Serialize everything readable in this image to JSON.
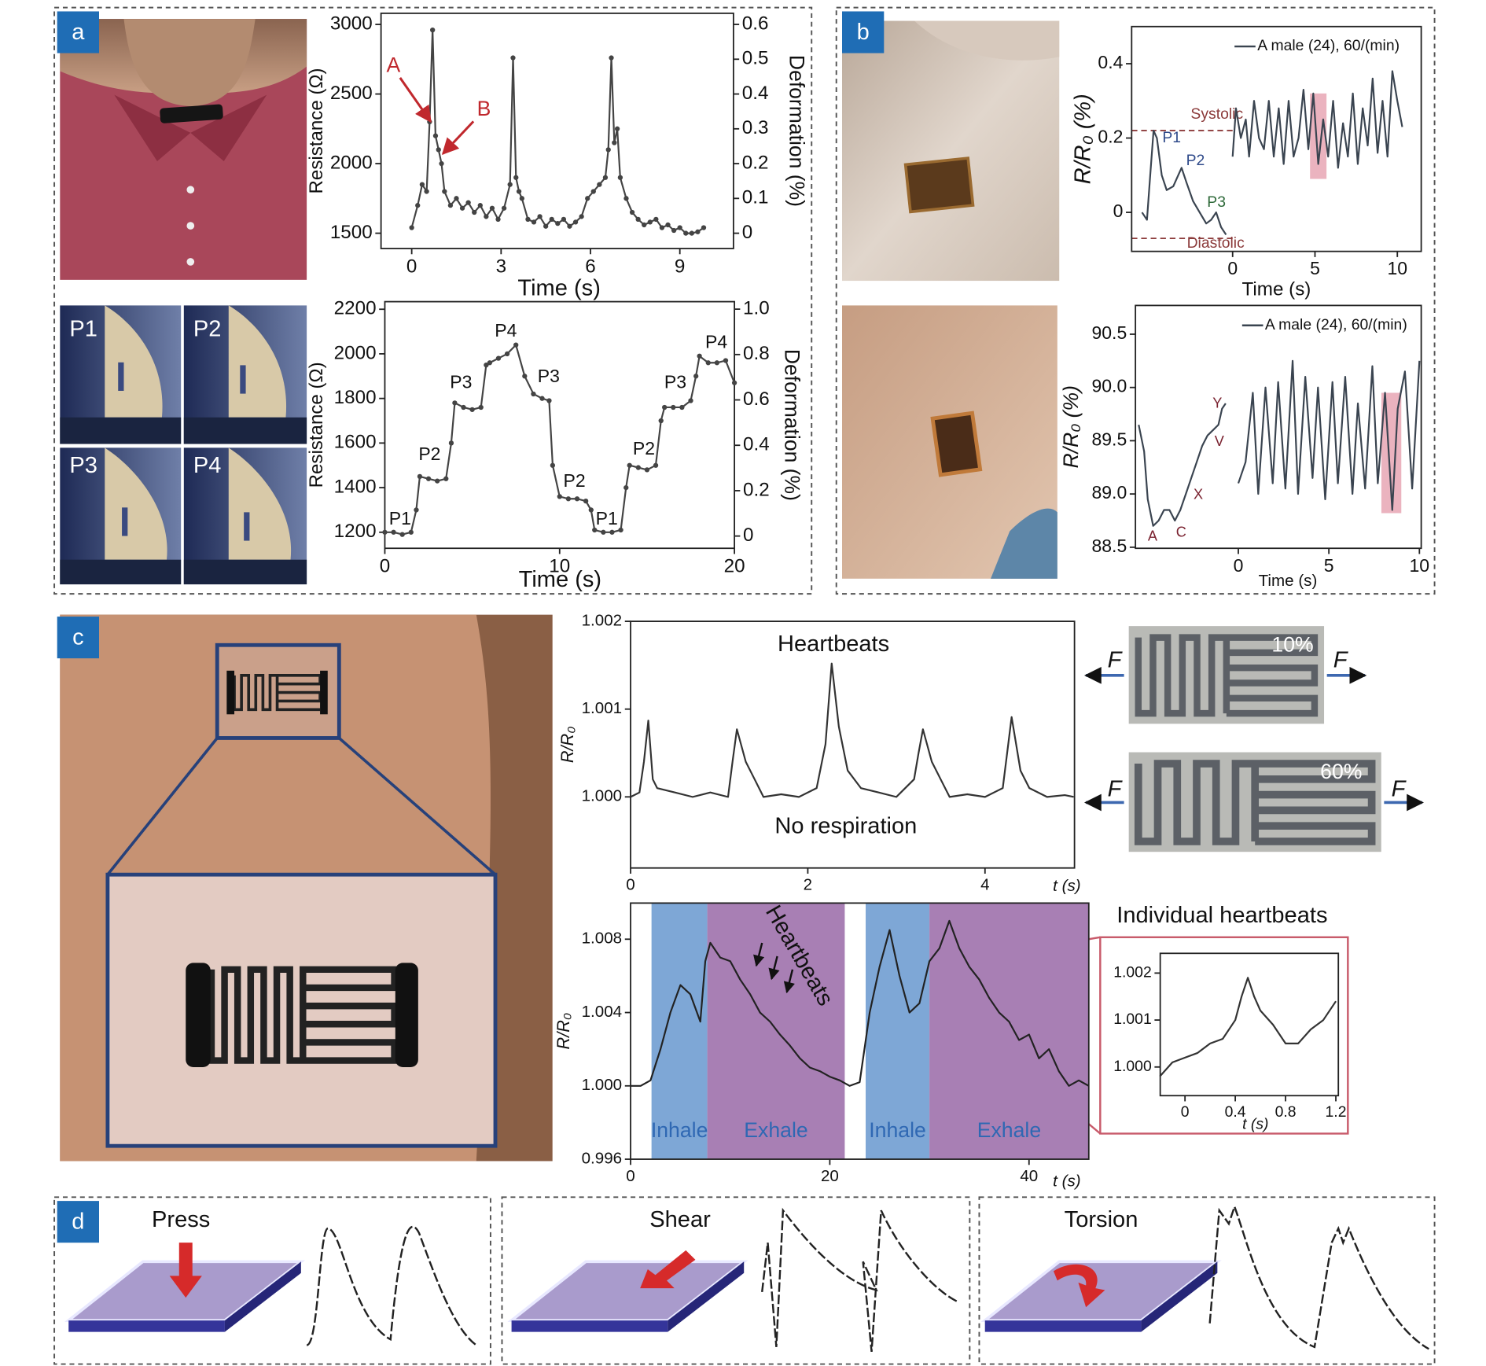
{
  "panel_labels": [
    "a",
    "b",
    "c",
    "d"
  ],
  "photos": {
    "a": [
      "P1",
      "P2",
      "P3",
      "P4"
    ],
    "c_strain": [
      {
        "strain": "10%",
        "force": [
          "F",
          "F"
        ]
      },
      {
        "strain": "60%",
        "force": [
          "F",
          "F"
        ]
      }
    ]
  },
  "chart_data": [
    {
      "type": "line",
      "xlabel": "Time (s)",
      "ylabel": "Resistance (Ω)",
      "y2label": "Deformation (%)",
      "xlim": [
        -1.03,
        10.8
      ],
      "xticks": [
        0,
        3,
        6,
        9
      ],
      "ylim": [
        1390,
        3080
      ],
      "yticks": [
        1500,
        2000,
        2500,
        3000
      ],
      "y2lim": [
        -0.044,
        0.632
      ],
      "y2ticks": [
        0,
        0.1,
        0.2,
        0.3,
        0.4,
        0.5,
        0.6
      ],
      "markers": true,
      "annotations": [
        "A",
        "B"
      ],
      "annotation_color": "#c0282d",
      "series": [
        {
          "color": "#444444",
          "x": [
            0,
            0.2,
            0.35,
            0.5,
            0.6,
            0.7,
            0.8,
            0.9,
            1.0,
            1.1,
            1.3,
            1.5,
            1.7,
            1.9,
            2.1,
            2.3,
            2.5,
            2.7,
            2.9,
            3.1,
            3.3,
            3.4,
            3.5,
            3.6,
            3.7,
            3.9,
            4.1,
            4.3,
            4.5,
            4.7,
            4.9,
            5.1,
            5.3,
            5.5,
            5.7,
            5.9,
            6.1,
            6.3,
            6.5,
            6.6,
            6.7,
            6.8,
            6.9,
            7.0,
            7.2,
            7.4,
            7.6,
            7.8,
            8.0,
            8.2,
            8.4,
            8.6,
            8.8,
            9.0,
            9.2,
            9.4,
            9.6,
            9.8
          ],
          "values": [
            1540,
            1700,
            1850,
            1800,
            2300,
            2960,
            2200,
            2100,
            2000,
            1800,
            1700,
            1750,
            1680,
            1720,
            1650,
            1700,
            1620,
            1680,
            1600,
            1680,
            1850,
            2760,
            1900,
            1800,
            1750,
            1600,
            1580,
            1620,
            1550,
            1600,
            1570,
            1600,
            1550,
            1580,
            1620,
            1750,
            1800,
            1850,
            1900,
            2100,
            2760,
            2150,
            2250,
            1900,
            1750,
            1650,
            1600,
            1560,
            1580,
            1600,
            1540,
            1560,
            1520,
            1540,
            1500,
            1500,
            1510,
            1540
          ]
        }
      ]
    },
    {
      "type": "line",
      "xlabel": "Time (s)",
      "ylabel": "Resistance (Ω)",
      "y2label": "Deformation (%)",
      "xlim": [
        0,
        20
      ],
      "xticks": [
        0,
        10,
        20
      ],
      "ylim": [
        1128,
        2234
      ],
      "yticks": [
        1200,
        1400,
        1600,
        1800,
        2000,
        2200
      ],
      "y2lim": [
        -0.054,
        1.033
      ],
      "y2ticks": [
        0,
        0.2,
        0.4,
        0.6,
        0.8,
        {
          "value": 1,
          "label": "1.0"
        }
      ],
      "markers": true,
      "annotations": [
        "P1",
        "P2",
        "P3",
        "P4",
        "P3",
        "P2",
        "P1",
        "P2",
        "P3",
        "P4"
      ],
      "series": [
        {
          "color": "#444444",
          "x": [
            0,
            0.5,
            1,
            1.5,
            1.8,
            2,
            2.5,
            3,
            3.5,
            3.8,
            4,
            4.5,
            5,
            5.5,
            5.8,
            6,
            6.5,
            7,
            7.5,
            8,
            8.5,
            9,
            9.4,
            9.6,
            10,
            10.5,
            11,
            11.5,
            11.8,
            12,
            12.5,
            13,
            13.5,
            13.8,
            14,
            14.5,
            15,
            15.5,
            15.8,
            16,
            16.5,
            17,
            17.5,
            17.8,
            18,
            18.5,
            19,
            19.5,
            20
          ],
          "values": [
            1200,
            1200,
            1190,
            1200,
            1300,
            1450,
            1440,
            1430,
            1440,
            1600,
            1780,
            1760,
            1750,
            1760,
            1950,
            1960,
            1980,
            2000,
            2040,
            1900,
            1820,
            1800,
            1790,
            1500,
            1360,
            1350,
            1350,
            1340,
            1300,
            1210,
            1200,
            1200,
            1210,
            1400,
            1500,
            1490,
            1480,
            1500,
            1700,
            1760,
            1760,
            1760,
            1790,
            1900,
            1990,
            1960,
            1960,
            1970,
            1870
          ]
        }
      ]
    },
    {
      "type": "line",
      "xlabel": "Time (s)",
      "ylabel": "R/R₀ (%)",
      "xlim": [
        -6.13,
        11.45
      ],
      "xticks": [
        0,
        5,
        10
      ],
      "ylim": [
        -0.105,
        0.5
      ],
      "yticks": [
        0,
        0.2,
        0.4
      ],
      "annotations": [
        "P1",
        "P2",
        "P3"
      ],
      "reference_lines": [
        {
          "label": "Systolic",
          "value": 0.22
        },
        {
          "label": "Diastolic",
          "value": -0.07
        }
      ],
      "reference_color": "#8b3a3a",
      "highlight": {
        "x": [
          4.7,
          5.7
        ],
        "y": [
          0.09,
          0.32
        ],
        "color": "#e8a6b4"
      },
      "series": [
        {
          "name": "A male (24), 60/(min)",
          "color": "#3a4450",
          "x": [
            -5.5,
            -5.2,
            -5.0,
            -4.8,
            -4.6,
            -4.3,
            -4.0,
            -3.6,
            -3.3,
            -3.1,
            -2.8,
            -2.4,
            -2.0,
            -1.6,
            -1.3,
            -1.0,
            -0.7,
            -0.4,
            -0.2,
            0,
            0.2,
            0.5,
            0.8,
            1.0,
            1.3,
            1.6,
            1.9,
            2.2,
            2.5,
            2.8,
            3.1,
            3.4,
            3.7,
            4.0,
            4.3,
            4.6,
            4.9,
            5.2,
            5.5,
            5.8,
            6.1,
            6.4,
            6.7,
            7.0,
            7.3,
            7.6,
            7.9,
            8.2,
            8.5,
            8.8,
            9.1,
            9.4,
            9.7,
            10.0,
            10.3
          ],
          "values": [
            0.0,
            -0.02,
            0.1,
            0.22,
            0.2,
            0.1,
            0.06,
            0.07,
            0.1,
            0.12,
            0.08,
            0.03,
            0.0,
            -0.03,
            -0.02,
            0.0,
            -0.04,
            -0.06,
            null,
            0.15,
            0.28,
            0.2,
            0.25,
            0.15,
            0.3,
            0.2,
            0.17,
            0.3,
            0.15,
            0.28,
            0.13,
            0.3,
            0.15,
            0.2,
            0.33,
            0.17,
            0.32,
            0.13,
            0.25,
            0.15,
            0.3,
            0.12,
            0.24,
            0.15,
            0.32,
            0.13,
            0.28,
            0.18,
            0.36,
            0.16,
            0.3,
            0.15,
            0.38,
            0.3,
            0.23
          ]
        }
      ]
    },
    {
      "type": "line",
      "xlabel": "Time (s)",
      "ylabel": "R/R₀ (%)",
      "xlim": [
        -5.68,
        10.1
      ],
      "xticks": [
        0,
        5,
        10
      ],
      "ylim": [
        88.49,
        90.77
      ],
      "yticks": [
        88.5,
        {
          "value": 89,
          "label": "89.0"
        },
        89.5,
        {
          "value": 90,
          "label": "90.0"
        },
        90.5
      ],
      "annotations": [
        "A",
        "C",
        "X",
        "V",
        "Y"
      ],
      "annotation_color": "#7a2230",
      "highlight": {
        "x": [
          7.9,
          9.0
        ],
        "y": [
          88.82,
          89.95
        ],
        "color": "#e8a6b4"
      },
      "series": [
        {
          "name": "A male (24), 60/(min)",
          "color": "#3a4450",
          "x": [
            -5.5,
            -5.2,
            -5.0,
            -4.7,
            -4.4,
            -4.1,
            -3.8,
            -3.5,
            -3.2,
            -2.9,
            -2.6,
            -2.3,
            -2.0,
            -1.7,
            -1.4,
            -1.1,
            -0.9,
            -0.7,
            -0.3,
            0,
            0.4,
            0.8,
            1.1,
            1.5,
            1.9,
            2.2,
            2.6,
            3.0,
            3.3,
            3.7,
            4.1,
            4.4,
            4.8,
            5.2,
            5.5,
            5.9,
            6.3,
            6.6,
            7.0,
            7.4,
            7.7,
            8.1,
            8.5,
            8.8,
            9.2,
            9.6,
            10.0
          ],
          "values": [
            89.65,
            89.4,
            88.95,
            88.7,
            88.75,
            88.85,
            88.85,
            88.75,
            88.85,
            89.0,
            89.15,
            89.3,
            89.45,
            89.55,
            89.6,
            89.65,
            89.8,
            89.85,
            null,
            89.1,
            89.3,
            89.95,
            89.0,
            90.0,
            89.1,
            90.05,
            89.05,
            90.25,
            89.0,
            90.1,
            89.15,
            90.0,
            88.95,
            90.05,
            89.1,
            90.1,
            89.0,
            89.85,
            89.05,
            90.2,
            89.1,
            89.95,
            88.85,
            89.8,
            90.15,
            89.05,
            90.25
          ]
        }
      ]
    },
    {
      "type": "line",
      "xlabel": "t (s)",
      "ylabel": "R/R₀",
      "xlim": [
        0,
        5.01
      ],
      "xticks": [
        0,
        2,
        4
      ],
      "ylim": [
        0.99919,
        1.002
      ],
      "yticks": [
        {
          "value": 1,
          "label": "1.000"
        },
        {
          "value": 1.001,
          "label": "1.001"
        },
        {
          "value": 1.002,
          "label": "1.002"
        }
      ],
      "annotations": [
        "Heartbeats",
        "No respiration"
      ],
      "series": [
        {
          "color": "#333333",
          "x": [
            0,
            0.1,
            0.15,
            0.2,
            0.25,
            0.3,
            0.5,
            0.7,
            0.9,
            1.1,
            1.15,
            1.2,
            1.3,
            1.4,
            1.5,
            1.7,
            1.9,
            2.1,
            2.2,
            2.27,
            2.35,
            2.45,
            2.6,
            2.8,
            3.0,
            3.2,
            3.25,
            3.3,
            3.4,
            3.5,
            3.6,
            3.8,
            4.0,
            4.2,
            4.25,
            4.3,
            4.4,
            4.5,
            4.7,
            4.9,
            5.0
          ],
          "values": [
            1.0,
            1.00005,
            1.0004,
            1.00087,
            1.0002,
            1.0001,
            1.00005,
            1.0,
            1.00005,
            1.0,
            1.0004,
            1.00077,
            1.0004,
            1.0002,
            1.0,
            1.00003,
            1.0,
            1.0001,
            1.0006,
            1.00152,
            1.0008,
            1.0003,
            1.0001,
            1.00005,
            1.0,
            1.0002,
            1.0005,
            1.00077,
            1.0004,
            1.0002,
            1.0,
            1.00003,
            1.0,
            1.0001,
            1.0005,
            1.00091,
            1.0003,
            1.0001,
            1.0,
            1.00002,
            1.0
          ]
        }
      ]
    },
    {
      "type": "line",
      "xlabel": "t (s)",
      "ylabel": "R/R₀",
      "xlim": [
        0,
        46
      ],
      "xticks": [
        0,
        20,
        40
      ],
      "ylim": [
        0.996,
        1.00997
      ],
      "yticks": [
        {
          "value": 0.996,
          "label": "0.996"
        },
        {
          "value": 1,
          "label": "1.000"
        },
        {
          "value": 1.004,
          "label": "1.004"
        },
        {
          "value": 1.008,
          "label": "1.008"
        }
      ],
      "annotations": [
        "Heartbeats"
      ],
      "regions": [
        {
          "label": "Inhale",
          "x": [
            2.1,
            7.7
          ],
          "color": "#7ea7d6"
        },
        {
          "label": "Exhale",
          "x": [
            7.7,
            21.5
          ],
          "color": "#a87fb4"
        },
        {
          "label": "Inhale",
          "x": [
            23.6,
            30
          ],
          "color": "#7ea7d6"
        },
        {
          "label": "Exhale",
          "x": [
            30,
            46
          ],
          "color": "#a87fb4"
        }
      ],
      "region_text_color": "#2f68b3",
      "series": [
        {
          "color": "#222222",
          "x": [
            0,
            1,
            2,
            3,
            4,
            5,
            6,
            7,
            7.5,
            8,
            9,
            10,
            11,
            12,
            13,
            14,
            15,
            16,
            17,
            18,
            19,
            20,
            21,
            22,
            23,
            24,
            25,
            26,
            27,
            28,
            29,
            30,
            31,
            32,
            33,
            34,
            35,
            36,
            37,
            38,
            39,
            40,
            41,
            42,
            43,
            44,
            45,
            46
          ],
          "values": [
            1.0,
            1.0,
            1.0003,
            1.002,
            1.004,
            1.0055,
            1.005,
            1.0035,
            1.0068,
            1.0078,
            1.007,
            1.0068,
            1.0058,
            1.005,
            1.004,
            1.0035,
            1.0028,
            1.0022,
            1.0015,
            1.001,
            1.0008,
            1.0005,
            1.0003,
            1.0,
            1.0002,
            1.004,
            1.0065,
            1.0085,
            1.006,
            1.004,
            1.0045,
            1.0068,
            1.0075,
            1.009,
            1.0075,
            1.0065,
            1.0058,
            1.0048,
            1.004,
            1.0035,
            1.0025,
            1.0028,
            1.0015,
            1.002,
            1.0008,
            1.0,
            1.0003,
            1.0
          ]
        }
      ]
    },
    {
      "type": "line",
      "title": "Individual heartbeats",
      "xlabel": "t (s)",
      "xlim": [
        -0.197,
        1.22
      ],
      "xticks": [
        0,
        0.4,
        0.8,
        1.2
      ],
      "ylim": [
        0.99939,
        1.00242
      ],
      "yticks": [
        {
          "value": 1,
          "label": "1.000"
        },
        {
          "value": 1.001,
          "label": "1.001"
        },
        {
          "value": 1.002,
          "label": "1.002"
        }
      ],
      "series": [
        {
          "color": "#333333",
          "x": [
            -0.2,
            -0.1,
            0,
            0.1,
            0.2,
            0.3,
            0.4,
            0.45,
            0.5,
            0.55,
            0.6,
            0.7,
            0.8,
            0.9,
            1.0,
            1.1,
            1.2
          ],
          "values": [
            0.9998,
            1.0001,
            1.0002,
            1.0003,
            1.0005,
            1.0006,
            1.001,
            1.0015,
            1.0019,
            1.0015,
            1.0012,
            1.0009,
            1.0005,
            1.0005,
            1.0008,
            1.001,
            1.0014
          ]
        }
      ]
    }
  ],
  "deformation_modes": [
    "Press",
    "Shear",
    "Torsion"
  ]
}
